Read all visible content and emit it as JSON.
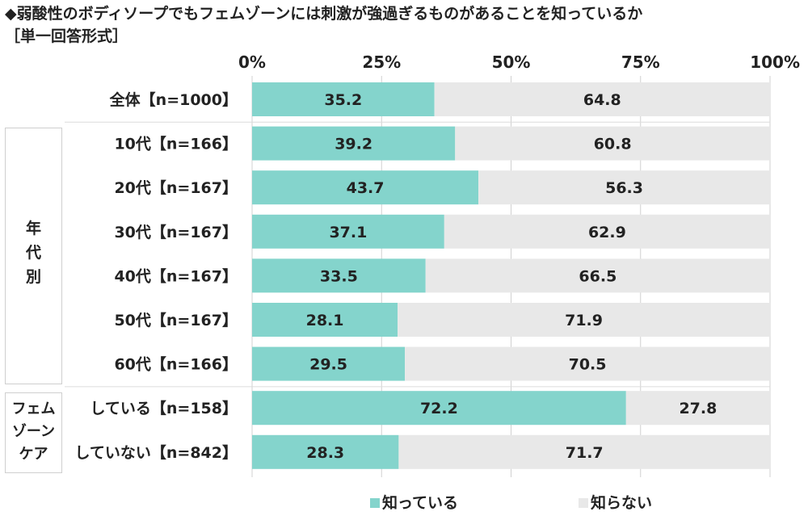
{
  "title": "◆弱酸性のボディソープでもフェムゾーンには刺激が強過ぎるものがあることを知っているか",
  "subtitle": "［単一回答形式］",
  "groups": [
    {
      "label_lines": [
        "年",
        "代",
        "別"
      ]
    },
    {
      "label_lines": [
        "フェム",
        "ゾーン",
        "ケア"
      ]
    }
  ],
  "colors": {
    "know": "#84d4cc",
    "dont_know": "#e8e8e8",
    "grid": "#d0d0d0"
  },
  "chart_data": {
    "type": "bar",
    "orientation": "horizontal",
    "stacked": true,
    "percent_axis": true,
    "xlim": [
      0,
      100
    ],
    "x_ticks": [
      "0%",
      "25%",
      "50%",
      "75%",
      "100%"
    ],
    "grid": true,
    "legend_position": "bottom",
    "categories": [
      "全体【n=1000】",
      "10代【n=166】",
      "20代【n=167】",
      "30代【n=167】",
      "40代【n=167】",
      "50代【n=167】",
      "60代【n=166】",
      "している【n=158】",
      "していない【n=842】"
    ],
    "series": [
      {
        "name": "知っている",
        "values": [
          35.2,
          39.2,
          43.7,
          37.1,
          33.5,
          28.1,
          29.5,
          72.2,
          28.3
        ]
      },
      {
        "name": "知らない",
        "values": [
          64.8,
          60.8,
          56.3,
          62.9,
          66.5,
          71.9,
          70.5,
          27.8,
          71.7
        ]
      }
    ]
  }
}
